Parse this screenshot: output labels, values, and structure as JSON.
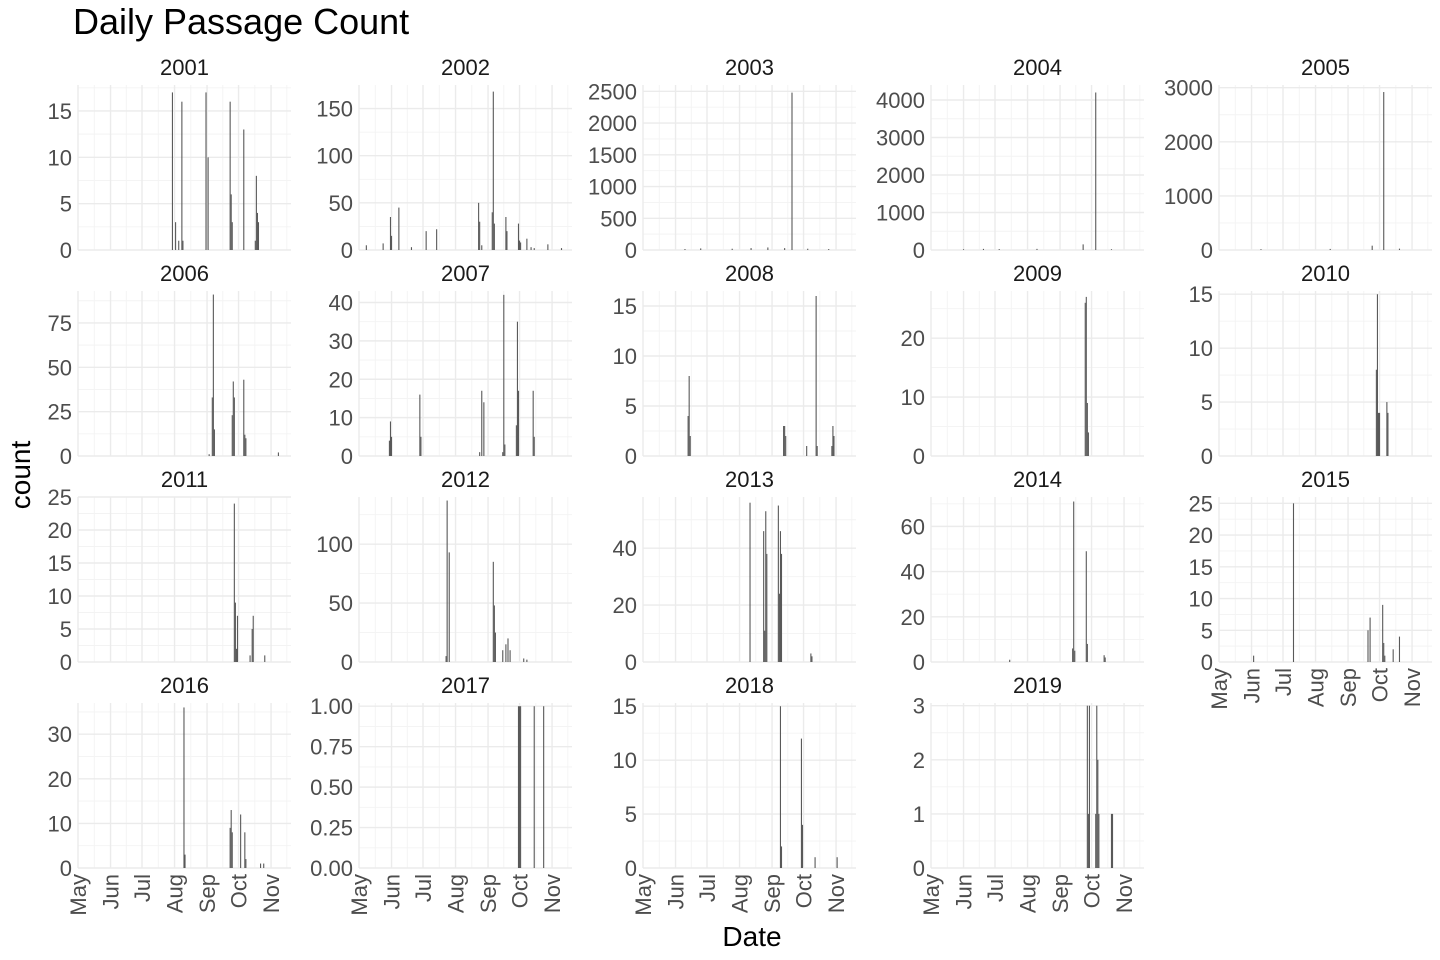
{
  "chart_data": {
    "type": "bar",
    "title": "Daily Passage Count",
    "xlabel": "Date",
    "ylabel": "count",
    "x_tick_labels": [
      "May",
      "Jun",
      "Jul",
      "Aug",
      "Sep",
      "Oct",
      "Nov"
    ],
    "x_tick_dates": [
      "05-01",
      "06-01",
      "07-01",
      "08-01",
      "09-01",
      "10-01",
      "11-01"
    ],
    "xlim": [
      "05-01",
      "11-20"
    ],
    "grid": true,
    "facets": [
      {
        "year": "2001",
        "ylim": [
          0,
          17.8
        ],
        "yticks": [
          0,
          5,
          10,
          15
        ],
        "ytick_labels": [
          "0",
          "5",
          "10",
          "15"
        ],
        "bars": [
          [
            "07-30",
            17
          ],
          [
            "08-02",
            3
          ],
          [
            "08-05",
            1
          ],
          [
            "08-08",
            16
          ],
          [
            "08-09",
            1
          ],
          [
            "08-31",
            17
          ],
          [
            "09-02",
            10
          ],
          [
            "09-23",
            16
          ],
          [
            "09-24",
            6
          ],
          [
            "09-25",
            3
          ],
          [
            "10-06",
            13
          ],
          [
            "10-17",
            1
          ],
          [
            "10-18",
            8
          ],
          [
            "10-19",
            4
          ],
          [
            "10-20",
            3
          ]
        ]
      },
      {
        "year": "2002",
        "ylim": [
          0,
          175
        ],
        "yticks": [
          0,
          50,
          100,
          150
        ],
        "ytick_labels": [
          "0",
          "50",
          "100",
          "150"
        ],
        "bars": [
          [
            "05-08",
            5
          ],
          [
            "05-24",
            7
          ],
          [
            "05-31",
            35
          ],
          [
            "06-01",
            15
          ],
          [
            "06-08",
            45
          ],
          [
            "06-20",
            3
          ],
          [
            "07-04",
            20
          ],
          [
            "07-14",
            22
          ],
          [
            "08-23",
            50
          ],
          [
            "08-24",
            30
          ],
          [
            "08-26",
            5
          ],
          [
            "09-05",
            40
          ],
          [
            "09-06",
            168
          ],
          [
            "09-07",
            28
          ],
          [
            "09-18",
            35
          ],
          [
            "09-19",
            20
          ],
          [
            "09-30",
            28
          ],
          [
            "10-01",
            10
          ],
          [
            "10-02",
            8
          ],
          [
            "10-08",
            12
          ],
          [
            "10-12",
            3
          ],
          [
            "10-15",
            2
          ],
          [
            "10-28",
            6
          ],
          [
            "11-10",
            2
          ]
        ]
      },
      {
        "year": "2003",
        "ylim": [
          0,
          2600
        ],
        "yticks": [
          0,
          500,
          1000,
          1500,
          2000,
          2500
        ],
        "ytick_labels": [
          "0",
          "500",
          "1000",
          "1500",
          "2000",
          "2500"
        ],
        "bars": [
          [
            "06-10",
            15
          ],
          [
            "06-25",
            25
          ],
          [
            "07-25",
            20
          ],
          [
            "08-12",
            30
          ],
          [
            "08-28",
            40
          ],
          [
            "09-13",
            30
          ],
          [
            "09-20",
            2480
          ],
          [
            "10-05",
            20
          ],
          [
            "10-25",
            15
          ]
        ]
      },
      {
        "year": "2004",
        "ylim": [
          0,
          4400
        ],
        "yticks": [
          0,
          1000,
          2000,
          3000,
          4000
        ],
        "ytick_labels": [
          "0",
          "1000",
          "2000",
          "3000",
          "4000"
        ],
        "bars": [
          [
            "06-01",
            20
          ],
          [
            "06-20",
            30
          ],
          [
            "07-05",
            25
          ],
          [
            "08-10",
            30
          ],
          [
            "09-23",
            150
          ],
          [
            "10-05",
            4200
          ],
          [
            "10-20",
            20
          ]
        ]
      },
      {
        "year": "2005",
        "ylim": [
          0,
          3050
        ],
        "yticks": [
          0,
          1000,
          2000,
          3000
        ],
        "ytick_labels": [
          "0",
          "1000",
          "2000",
          "3000"
        ],
        "bars": [
          [
            "06-10",
            15
          ],
          [
            "08-15",
            20
          ],
          [
            "09-24",
            80
          ],
          [
            "10-05",
            2920
          ],
          [
            "10-20",
            25
          ]
        ]
      },
      {
        "year": "2006",
        "ylim": [
          0,
          93
        ],
        "yticks": [
          0,
          25,
          50,
          75
        ],
        "ytick_labels": [
          "0",
          "25",
          "50",
          "75"
        ],
        "bars": [
          [
            "09-03",
            1
          ],
          [
            "09-06",
            33
          ],
          [
            "09-07",
            91
          ],
          [
            "09-08",
            15
          ],
          [
            "09-25",
            23
          ],
          [
            "09-26",
            42
          ],
          [
            "09-27",
            33
          ],
          [
            "10-06",
            43
          ],
          [
            "10-07",
            12
          ],
          [
            "10-08",
            10
          ],
          [
            "11-08",
            2
          ]
        ]
      },
      {
        "year": "2007",
        "ylim": [
          0,
          43
        ],
        "yticks": [
          0,
          10,
          20,
          30,
          40
        ],
        "ytick_labels": [
          "0",
          "10",
          "20",
          "30",
          "40"
        ],
        "bars": [
          [
            "05-30",
            4
          ],
          [
            "05-31",
            9
          ],
          [
            "06-01",
            5
          ],
          [
            "06-28",
            16
          ],
          [
            "06-29",
            5
          ],
          [
            "08-24",
            1
          ],
          [
            "08-26",
            17
          ],
          [
            "08-28",
            14
          ],
          [
            "09-15",
            1
          ],
          [
            "09-16",
            42
          ],
          [
            "09-17",
            3
          ],
          [
            "09-28",
            8
          ],
          [
            "09-29",
            35
          ],
          [
            "09-30",
            17
          ],
          [
            "10-14",
            17
          ],
          [
            "10-15",
            5
          ]
        ]
      },
      {
        "year": "2008",
        "ylim": [
          0,
          16.5
        ],
        "yticks": [
          0,
          5,
          10,
          15
        ],
        "ytick_labels": [
          "0",
          "5",
          "10",
          "15"
        ],
        "bars": [
          [
            "06-13",
            4
          ],
          [
            "06-14",
            8
          ],
          [
            "06-15",
            2
          ],
          [
            "09-12",
            3
          ],
          [
            "09-13",
            3
          ],
          [
            "09-14",
            2
          ],
          [
            "10-04",
            1
          ],
          [
            "10-13",
            16
          ],
          [
            "10-14",
            1
          ],
          [
            "10-28",
            1
          ],
          [
            "10-29",
            3
          ],
          [
            "10-30",
            2
          ]
        ]
      },
      {
        "year": "2009",
        "ylim": [
          0,
          28
        ],
        "yticks": [
          0,
          10,
          20
        ],
        "ytick_labels": [
          "0",
          "10",
          "20"
        ],
        "bars": [
          [
            "09-25",
            26
          ],
          [
            "09-26",
            27
          ],
          [
            "09-27",
            9
          ],
          [
            "09-28",
            4
          ]
        ]
      },
      {
        "year": "2010",
        "ylim": [
          0,
          15.3
        ],
        "yticks": [
          0,
          5,
          10,
          15
        ],
        "ytick_labels": [
          "0",
          "5",
          "10",
          "15"
        ],
        "bars": [
          [
            "09-28",
            8
          ],
          [
            "09-29",
            15
          ],
          [
            "09-30",
            4
          ],
          [
            "10-01",
            4
          ],
          [
            "10-08",
            5
          ],
          [
            "10-09",
            4
          ]
        ]
      },
      {
        "year": "2011",
        "ylim": [
          0,
          25
        ],
        "yticks": [
          0,
          5,
          10,
          15,
          20,
          25
        ],
        "ytick_labels": [
          "0",
          "5",
          "10",
          "15",
          "20",
          "25"
        ],
        "bars": [
          [
            "09-27",
            24
          ],
          [
            "09-28",
            9
          ],
          [
            "09-29",
            2
          ],
          [
            "09-30",
            7
          ],
          [
            "10-12",
            1
          ],
          [
            "10-14",
            5
          ],
          [
            "10-15",
            7
          ],
          [
            "10-26",
            1
          ]
        ]
      },
      {
        "year": "2012",
        "ylim": [
          0,
          140
        ],
        "yticks": [
          0,
          50,
          100
        ],
        "ytick_labels": [
          "0",
          "50",
          "100"
        ],
        "bars": [
          [
            "07-23",
            5
          ],
          [
            "07-24",
            137
          ],
          [
            "07-26",
            93
          ],
          [
            "09-06",
            85
          ],
          [
            "09-07",
            48
          ],
          [
            "09-08",
            25
          ],
          [
            "09-15",
            10
          ],
          [
            "09-18",
            15
          ],
          [
            "09-20",
            20
          ],
          [
            "09-22",
            10
          ],
          [
            "10-05",
            3
          ],
          [
            "10-08",
            2
          ]
        ]
      },
      {
        "year": "2013",
        "ylim": [
          0,
          58
        ],
        "yticks": [
          0,
          20,
          40
        ],
        "ytick_labels": [
          "0",
          "20",
          "40"
        ],
        "bars": [
          [
            "08-11",
            56
          ],
          [
            "08-24",
            46
          ],
          [
            "08-25",
            11
          ],
          [
            "08-26",
            53
          ],
          [
            "08-27",
            38
          ],
          [
            "09-07",
            55
          ],
          [
            "09-08",
            24
          ],
          [
            "09-09",
            46
          ],
          [
            "09-10",
            38
          ],
          [
            "10-08",
            3
          ],
          [
            "10-09",
            2
          ]
        ]
      },
      {
        "year": "2014",
        "ylim": [
          0,
          73
        ],
        "yticks": [
          0,
          20,
          40,
          60
        ],
        "ytick_labels": [
          "0",
          "20",
          "40",
          "60"
        ],
        "bars": [
          [
            "07-15",
            1
          ],
          [
            "09-13",
            6
          ],
          [
            "09-14",
            71
          ],
          [
            "09-15",
            5
          ],
          [
            "09-26",
            49
          ],
          [
            "09-27",
            8
          ],
          [
            "10-13",
            3
          ],
          [
            "10-14",
            2
          ]
        ]
      },
      {
        "year": "2015",
        "ylim": [
          0,
          26
        ],
        "yticks": [
          0,
          5,
          10,
          15,
          20,
          25
        ],
        "ytick_labels": [
          "0",
          "5",
          "10",
          "15",
          "20",
          "25"
        ],
        "bars": [
          [
            "06-03",
            1
          ],
          [
            "07-11",
            25
          ],
          [
            "09-20",
            5
          ],
          [
            "09-22",
            7
          ],
          [
            "10-04",
            9
          ],
          [
            "10-05",
            3
          ],
          [
            "10-06",
            1
          ],
          [
            "10-14",
            2
          ],
          [
            "10-20",
            4
          ]
        ]
      },
      {
        "year": "2016",
        "ylim": [
          0,
          37
        ],
        "yticks": [
          0,
          10,
          20,
          30
        ],
        "ytick_labels": [
          "0",
          "10",
          "20",
          "30"
        ],
        "bars": [
          [
            "08-10",
            36
          ],
          [
            "08-11",
            3
          ],
          [
            "09-23",
            9
          ],
          [
            "09-24",
            13
          ],
          [
            "09-25",
            8
          ],
          [
            "10-03",
            12
          ],
          [
            "10-07",
            8
          ],
          [
            "10-08",
            2
          ],
          [
            "10-22",
            1
          ],
          [
            "10-25",
            1
          ]
        ]
      },
      {
        "year": "2017",
        "ylim": [
          0,
          1.02
        ],
        "yticks": [
          0,
          0.25,
          0.5,
          0.75,
          1
        ],
        "ytick_labels": [
          "0.00",
          "0.25",
          "0.50",
          "0.75",
          "1.00"
        ],
        "bars": [
          [
            "09-30",
            1
          ],
          [
            "10-01",
            1
          ],
          [
            "10-02",
            1
          ],
          [
            "10-15",
            1
          ],
          [
            "10-24",
            1
          ]
        ]
      },
      {
        "year": "2018",
        "ylim": [
          0,
          15.3
        ],
        "yticks": [
          0,
          5,
          10,
          15
        ],
        "ytick_labels": [
          "0",
          "5",
          "10",
          "15"
        ],
        "bars": [
          [
            "09-09",
            15
          ],
          [
            "09-10",
            2
          ],
          [
            "09-29",
            12
          ],
          [
            "09-30",
            4
          ],
          [
            "10-12",
            1
          ],
          [
            "11-02",
            1
          ]
        ]
      },
      {
        "year": "2019",
        "ylim": [
          0,
          3.05
        ],
        "yticks": [
          0,
          1,
          2,
          3
        ],
        "ytick_labels": [
          "0",
          "1",
          "2",
          "3"
        ],
        "bars": [
          [
            "09-27",
            3
          ],
          [
            "09-28",
            1
          ],
          [
            "09-29",
            3
          ],
          [
            "10-05",
            1
          ],
          [
            "10-06",
            3
          ],
          [
            "10-07",
            2
          ],
          [
            "10-08",
            1
          ],
          [
            "10-20",
            1
          ],
          [
            "10-21",
            1
          ]
        ]
      }
    ]
  }
}
